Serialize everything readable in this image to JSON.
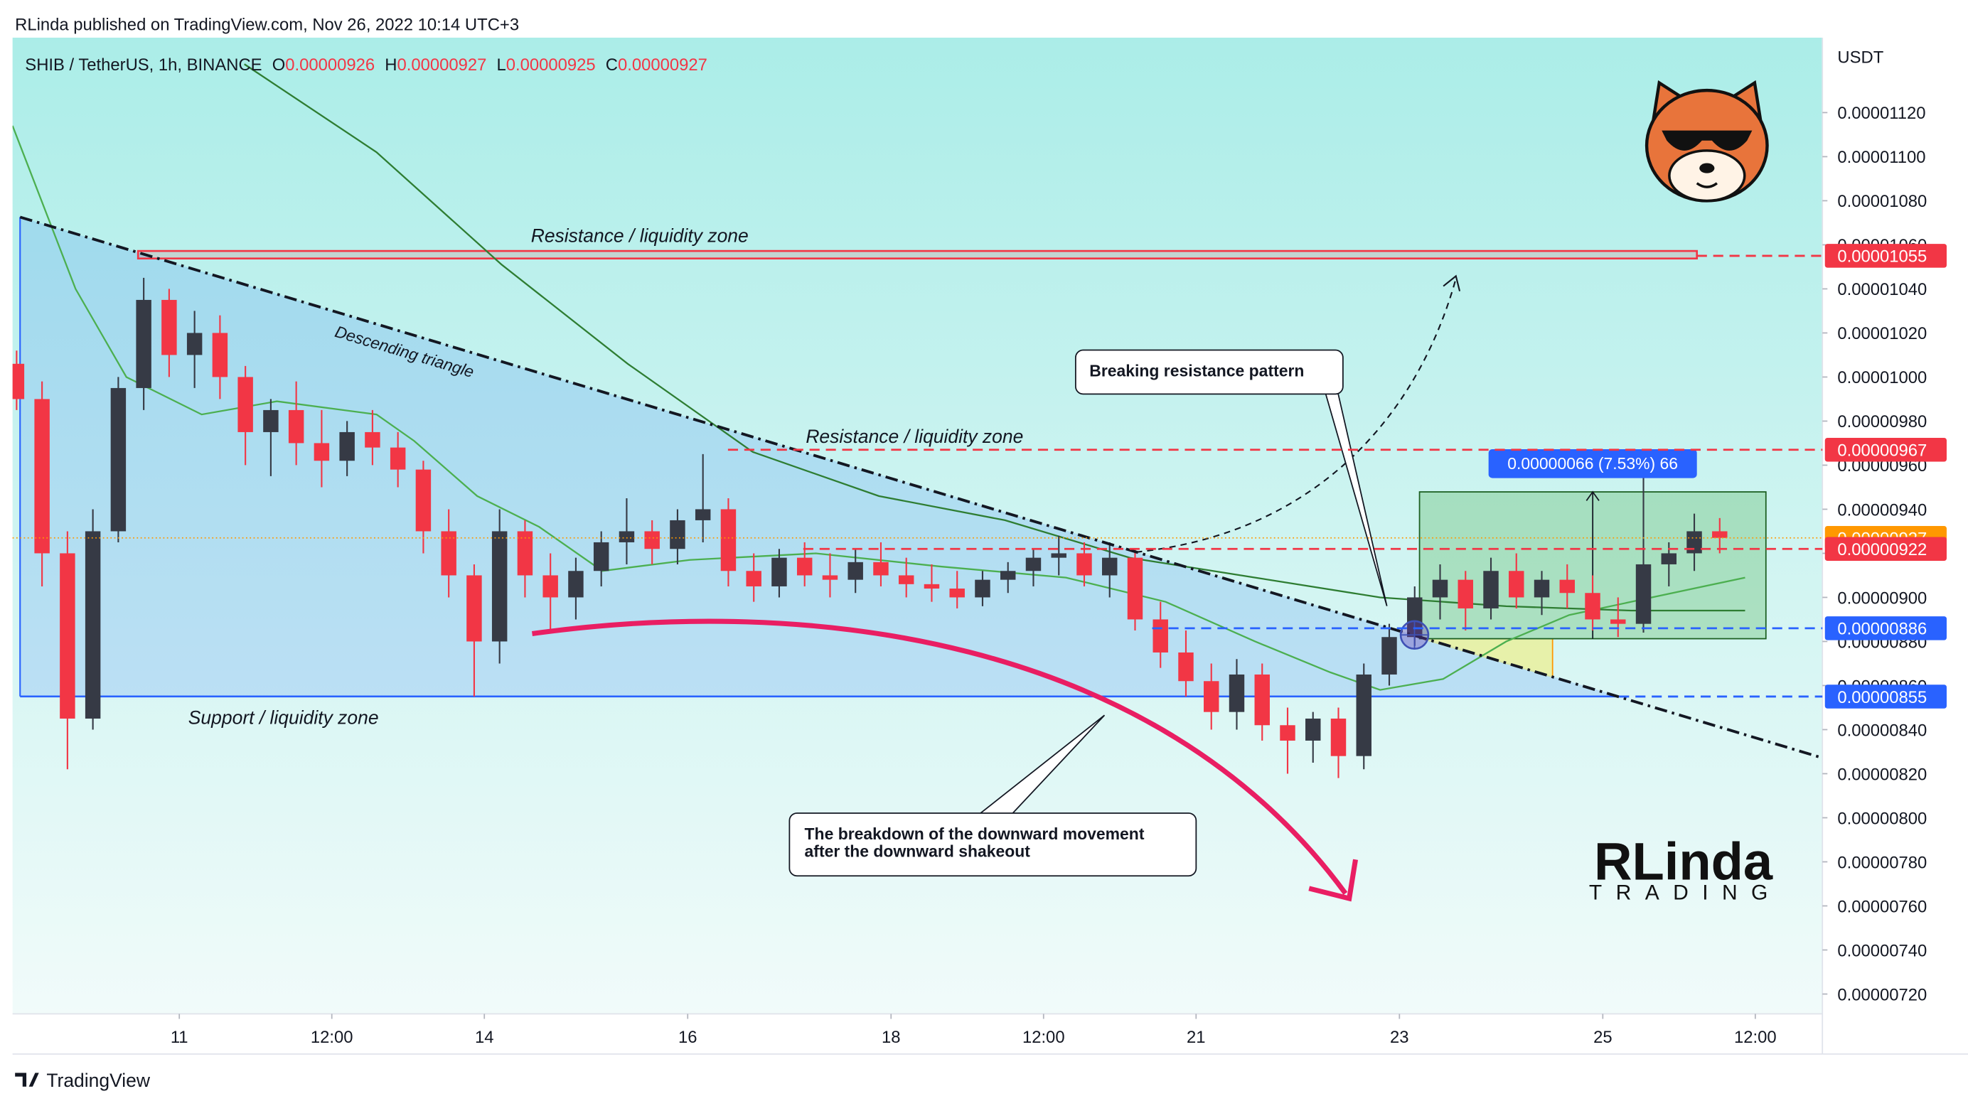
{
  "header": {
    "published": "RLinda published on TradingView.com, Nov 26, 2022 10:14 UTC+3"
  },
  "footer": {
    "brand": "TradingView"
  },
  "chart_data": {
    "type": "candlestick",
    "symbol": "SHIB / TetherUS, 1h, BINANCE",
    "ohlc": [
      {
        "label": "O",
        "value": 9.26e-06
      },
      {
        "label": "H",
        "value": 9.27e-06
      },
      {
        "label": "L",
        "value": 9.25e-06
      },
      {
        "label": "C",
        "value": 9.27e-06
      }
    ],
    "y_axis_label": "USDT",
    "up_color": "#363a45",
    "down_color": "#f23645",
    "xlim": [
      9.36,
      27.16
    ],
    "xticks": [
      11,
      {
        "value": 12.5,
        "label": "12:00"
      },
      14,
      16,
      18,
      {
        "value": 19.5,
        "label": "12:00"
      },
      21,
      23,
      25,
      {
        "value": 26.5,
        "label": "12:00"
      }
    ],
    "ylim": [
      7.11e-06,
      1.154e-05
    ],
    "yticks": [
      {
        "value": 7.2e-06,
        "label": "0.00000720"
      },
      {
        "value": 7.4e-06,
        "label": "0.00000740"
      },
      {
        "value": 7.6e-06,
        "label": "0.00000760"
      },
      {
        "value": 7.8e-06,
        "label": "0.00000780"
      },
      {
        "value": 8e-06,
        "label": "0.00000800"
      },
      {
        "value": 8.2e-06,
        "label": "0.00000820"
      },
      {
        "value": 8.4e-06,
        "label": "0.00000840"
      },
      {
        "value": 8.6e-06,
        "label": "0.00000860"
      },
      {
        "value": 8.8e-06,
        "label": "0.00000880"
      },
      {
        "value": 9e-06,
        "label": "0.00000900"
      },
      {
        "value": 9.2e-06,
        "label": "0.00000920"
      },
      {
        "value": 9.4e-06,
        "label": "0.00000940"
      },
      {
        "value": 9.6e-06,
        "label": "0.00000960"
      },
      {
        "value": 9.8e-06,
        "label": "0.00000980"
      },
      {
        "value": 1e-05,
        "label": "0.00001000"
      },
      {
        "value": 1.02e-05,
        "label": "0.00001020"
      },
      {
        "value": 1.04e-05,
        "label": "0.00001040"
      },
      {
        "value": 1.06e-05,
        "label": "0.00001060"
      },
      {
        "value": 1.08e-05,
        "label": "0.00001080"
      },
      {
        "value": 1.1e-05,
        "label": "0.00001100"
      },
      {
        "value": 1.12e-05,
        "label": "0.00001120"
      }
    ],
    "x": [
      9.4,
      9.65,
      9.9,
      10.15,
      10.4,
      10.65,
      10.9,
      11.15,
      11.4,
      11.65,
      11.9,
      12.15,
      12.4,
      12.65,
      12.9,
      13.15,
      13.4,
      13.65,
      13.9,
      14.15,
      14.4,
      14.65,
      14.9,
      15.15,
      15.4,
      15.65,
      15.9,
      16.15,
      16.4,
      16.65,
      16.9,
      17.15,
      17.4,
      17.65,
      17.9,
      18.15,
      18.4,
      18.65,
      18.9,
      19.15,
      19.4,
      19.65,
      19.9,
      20.15,
      20.4,
      20.65,
      20.9,
      21.15,
      21.4,
      21.65,
      21.9,
      22.15,
      22.4,
      22.65,
      22.9,
      23.15,
      23.4,
      23.65,
      23.9,
      24.15,
      24.4,
      24.65,
      24.9,
      25.15,
      25.4,
      25.65,
      25.9,
      26.15
    ],
    "open": [
      1.006e-05,
      9.9e-06,
      9.2e-06,
      8.45e-06,
      9.3e-06,
      9.95e-06,
      1.035e-05,
      1.01e-05,
      1.02e-05,
      1e-05,
      9.75e-06,
      9.85e-06,
      9.7e-06,
      9.62e-06,
      9.75e-06,
      9.68e-06,
      9.58e-06,
      9.3e-06,
      9.1e-06,
      8.8e-06,
      9.3e-06,
      9.1e-06,
      9e-06,
      9.12e-06,
      9.25e-06,
      9.3e-06,
      9.22e-06,
      9.35e-06,
      9.4e-06,
      9.12e-06,
      9.05e-06,
      9.18e-06,
      9.1e-06,
      9.08e-06,
      9.16e-06,
      9.1e-06,
      9.06e-06,
      9.04e-06,
      9e-06,
      9.08e-06,
      9.12e-06,
      9.18e-06,
      9.2e-06,
      9.1e-06,
      9.18e-06,
      8.9e-06,
      8.75e-06,
      8.62e-06,
      8.48e-06,
      8.65e-06,
      8.42e-06,
      8.35e-06,
      8.45e-06,
      8.28e-06,
      8.65e-06,
      8.82e-06,
      9e-06,
      9.08e-06,
      8.95e-06,
      9.12e-06,
      9e-06,
      9.08e-06,
      9.02e-06,
      8.9e-06,
      8.88e-06,
      9.15e-06,
      9.2e-06,
      9.3e-06
    ],
    "high": [
      1.012e-05,
      9.98e-06,
      9.3e-06,
      9.4e-06,
      1e-05,
      1.045e-05,
      1.04e-05,
      1.03e-05,
      1.028e-05,
      1.005e-05,
      9.9e-06,
      9.98e-06,
      9.85e-06,
      9.8e-06,
      9.85e-06,
      9.75e-06,
      9.62e-06,
      9.4e-06,
      9.15e-06,
      9.4e-06,
      9.35e-06,
      9.2e-06,
      9.18e-06,
      9.3e-06,
      9.45e-06,
      9.35e-06,
      9.4e-06,
      9.65e-06,
      9.45e-06,
      9.2e-06,
      9.22e-06,
      9.25e-06,
      9.2e-06,
      9.22e-06,
      9.25e-06,
      9.18e-06,
      9.15e-06,
      9.12e-06,
      9.12e-06,
      9.16e-06,
      9.22e-06,
      9.28e-06,
      9.25e-06,
      9.25e-06,
      9.22e-06,
      8.98e-06,
      8.85e-06,
      8.7e-06,
      8.72e-06,
      8.7e-06,
      8.5e-06,
      8.48e-06,
      8.5e-06,
      8.7e-06,
      8.88e-06,
      9.05e-06,
      9.15e-06,
      9.12e-06,
      9.18e-06,
      9.2e-06,
      9.12e-06,
      9.15e-06,
      9.1e-06,
      9e-06,
      9.67e-06,
      9.25e-06,
      9.38e-06,
      9.36e-06
    ],
    "low": [
      9.85e-06,
      9.05e-06,
      8.22e-06,
      8.4e-06,
      9.25e-06,
      9.85e-06,
      1e-05,
      9.95e-06,
      9.9e-06,
      9.6e-06,
      9.55e-06,
      9.6e-06,
      9.5e-06,
      9.55e-06,
      9.6e-06,
      9.5e-06,
      9.2e-06,
      9e-06,
      8.55e-06,
      8.7e-06,
      9e-06,
      8.85e-06,
      8.9e-06,
      9.05e-06,
      9.15e-06,
      9.15e-06,
      9.15e-06,
      9.25e-06,
      9.05e-06,
      8.98e-06,
      9e-06,
      9.05e-06,
      9e-06,
      9.02e-06,
      9.05e-06,
      9e-06,
      8.98e-06,
      8.95e-06,
      8.96e-06,
      9.02e-06,
      9.05e-06,
      9.1e-06,
      9.05e-06,
      9e-06,
      8.85e-06,
      8.68e-06,
      8.55e-06,
      8.4e-06,
      8.4e-06,
      8.35e-06,
      8.2e-06,
      8.25e-06,
      8.18e-06,
      8.22e-06,
      8.6e-06,
      8.78e-06,
      8.9e-06,
      8.85e-06,
      8.9e-06,
      8.95e-06,
      8.92e-06,
      8.95e-06,
      8.85e-06,
      8.82e-06,
      8.84e-06,
      9.05e-06,
      9.12e-06,
      9.2e-06
    ],
    "close": [
      9.9e-06,
      9.2e-06,
      8.45e-06,
      9.3e-06,
      9.95e-06,
      1.035e-05,
      1.01e-05,
      1.02e-05,
      1e-05,
      9.75e-06,
      9.85e-06,
      9.7e-06,
      9.62e-06,
      9.75e-06,
      9.68e-06,
      9.58e-06,
      9.3e-06,
      9.1e-06,
      8.8e-06,
      9.3e-06,
      9.1e-06,
      9e-06,
      9.12e-06,
      9.25e-06,
      9.3e-06,
      9.22e-06,
      9.35e-06,
      9.4e-06,
      9.12e-06,
      9.05e-06,
      9.18e-06,
      9.1e-06,
      9.08e-06,
      9.16e-06,
      9.1e-06,
      9.06e-06,
      9.04e-06,
      9e-06,
      9.08e-06,
      9.12e-06,
      9.18e-06,
      9.2e-06,
      9.1e-06,
      9.18e-06,
      8.9e-06,
      8.75e-06,
      8.62e-06,
      8.48e-06,
      8.65e-06,
      8.42e-06,
      8.35e-06,
      8.45e-06,
      8.28e-06,
      8.65e-06,
      8.82e-06,
      9e-06,
      9.08e-06,
      8.95e-06,
      9.12e-06,
      9e-06,
      9.08e-06,
      9.02e-06,
      8.9e-06,
      8.88e-06,
      9.15e-06,
      9.2e-06,
      9.3e-06,
      9.27e-06
    ],
    "moving_averages": [
      {
        "color": "#4caf50",
        "x": [
          9.36,
          9.98,
          10.48,
          11.22,
          11.96,
          12.94,
          13.31,
          13.93,
          14.54,
          15.16,
          16.02,
          17.26,
          18.49,
          19.72,
          20.7,
          21.58,
          22.32,
          22.81,
          23.43,
          24.05,
          24.67,
          25.28,
          26.4
        ],
        "values": [
          1.114e-05,
          1.04e-05,
          1e-05,
          9.83e-06,
          9.89e-06,
          9.83e-06,
          9.71e-06,
          9.46e-06,
          9.32e-06,
          9.12e-06,
          9.17e-06,
          9.2e-06,
          9.14e-06,
          9.09e-06,
          8.98e-06,
          8.8e-06,
          8.66e-06,
          8.58e-06,
          8.63e-06,
          8.8e-06,
          8.92e-06,
          8.98e-06,
          9.09e-06
        ]
      },
      {
        "color": "#2e7d32",
        "x": [
          11.64,
          12.94,
          14.17,
          15.41,
          16.64,
          17.88,
          19.12,
          20.35,
          21.58,
          22.81,
          24.05,
          25.28,
          26.4
        ],
        "values": [
          1.142e-05,
          1.102e-05,
          1.051e-05,
          1.006e-05,
          9.66e-06,
          9.46e-06,
          9.35e-06,
          9.18e-06,
          9.09e-06,
          9e-06,
          8.96e-06,
          8.94e-06,
          8.94e-06
        ]
      }
    ],
    "levels": [
      {
        "value": 1.055e-05,
        "color": "#f23645",
        "style": "dashed"
      },
      {
        "value": 9.67e-06,
        "color": "#f23645",
        "style": "dashed"
      },
      {
        "value": 9.27e-06,
        "color": "#ff9800",
        "style": "dotted"
      },
      {
        "value": 9.22e-06,
        "color": "#f23645",
        "style": "dashed"
      },
      {
        "value": 8.86e-06,
        "color": "#2962ff",
        "style": "dashed"
      },
      {
        "value": 8.55e-06,
        "color": "#2962ff",
        "style": "dashed"
      }
    ],
    "annotations": {
      "resistance_top": "Resistance / liquidity zone",
      "resistance_mid": "Resistance / liquidity zone",
      "support": "Support / liquidity zone",
      "triangle": "Descending triangle",
      "breaking": "Breaking resistance pattern",
      "breakdown": [
        "The breakdown of the downward movement",
        "after the downward shakeout"
      ],
      "measure": "0.00000066 (7.53%) 66"
    },
    "logo": {
      "name": "RLinda",
      "tagline": "TRADING"
    }
  }
}
